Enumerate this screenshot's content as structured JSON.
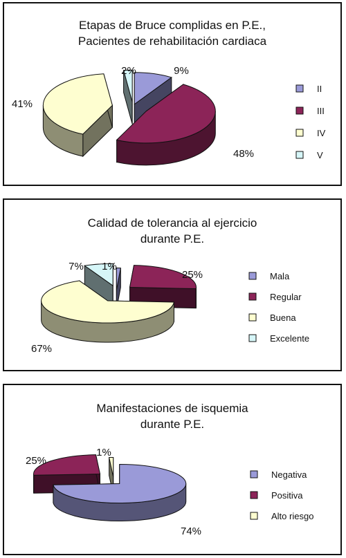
{
  "chart_data": [
    {
      "type": "pie",
      "title_lines": [
        "Etapas de Bruce complidas en P.E.,",
        "Pacientes de rehabilitación cardiaca"
      ],
      "categories": [
        "II",
        "III",
        "IV",
        "V"
      ],
      "values": [
        9,
        48,
        41,
        2
      ],
      "labels": [
        "9%",
        "48%",
        "41%",
        "2%"
      ],
      "colors": [
        "#9a9ad8",
        "#8c2458",
        "#fefed0",
        "#d6f6f8"
      ],
      "legend_position": "right",
      "exploded_3d": true
    },
    {
      "type": "pie",
      "title_lines": [
        "Calidad de tolerancia al ejercicio",
        "durante P.E."
      ],
      "categories": [
        "Mala",
        "Regular",
        "Buena",
        "Excelente"
      ],
      "values": [
        1,
        25,
        67,
        7
      ],
      "labels": [
        "1%",
        "25%",
        "67%",
        "7%"
      ],
      "colors": [
        "#9a9ad8",
        "#8c2458",
        "#fefed0",
        "#d6f6f8"
      ],
      "legend_position": "right",
      "exploded_3d": true
    },
    {
      "type": "pie",
      "title_lines": [
        "Manifestaciones de isquemia",
        "durante P.E."
      ],
      "categories": [
        "Negativa",
        "Positiva",
        "Alto riesgo"
      ],
      "values": [
        74,
        25,
        1
      ],
      "labels": [
        "74%",
        "25%",
        "1%"
      ],
      "colors": [
        "#9a9ad8",
        "#8c2458",
        "#fefed0"
      ],
      "legend_position": "right",
      "exploded_3d": true
    }
  ]
}
